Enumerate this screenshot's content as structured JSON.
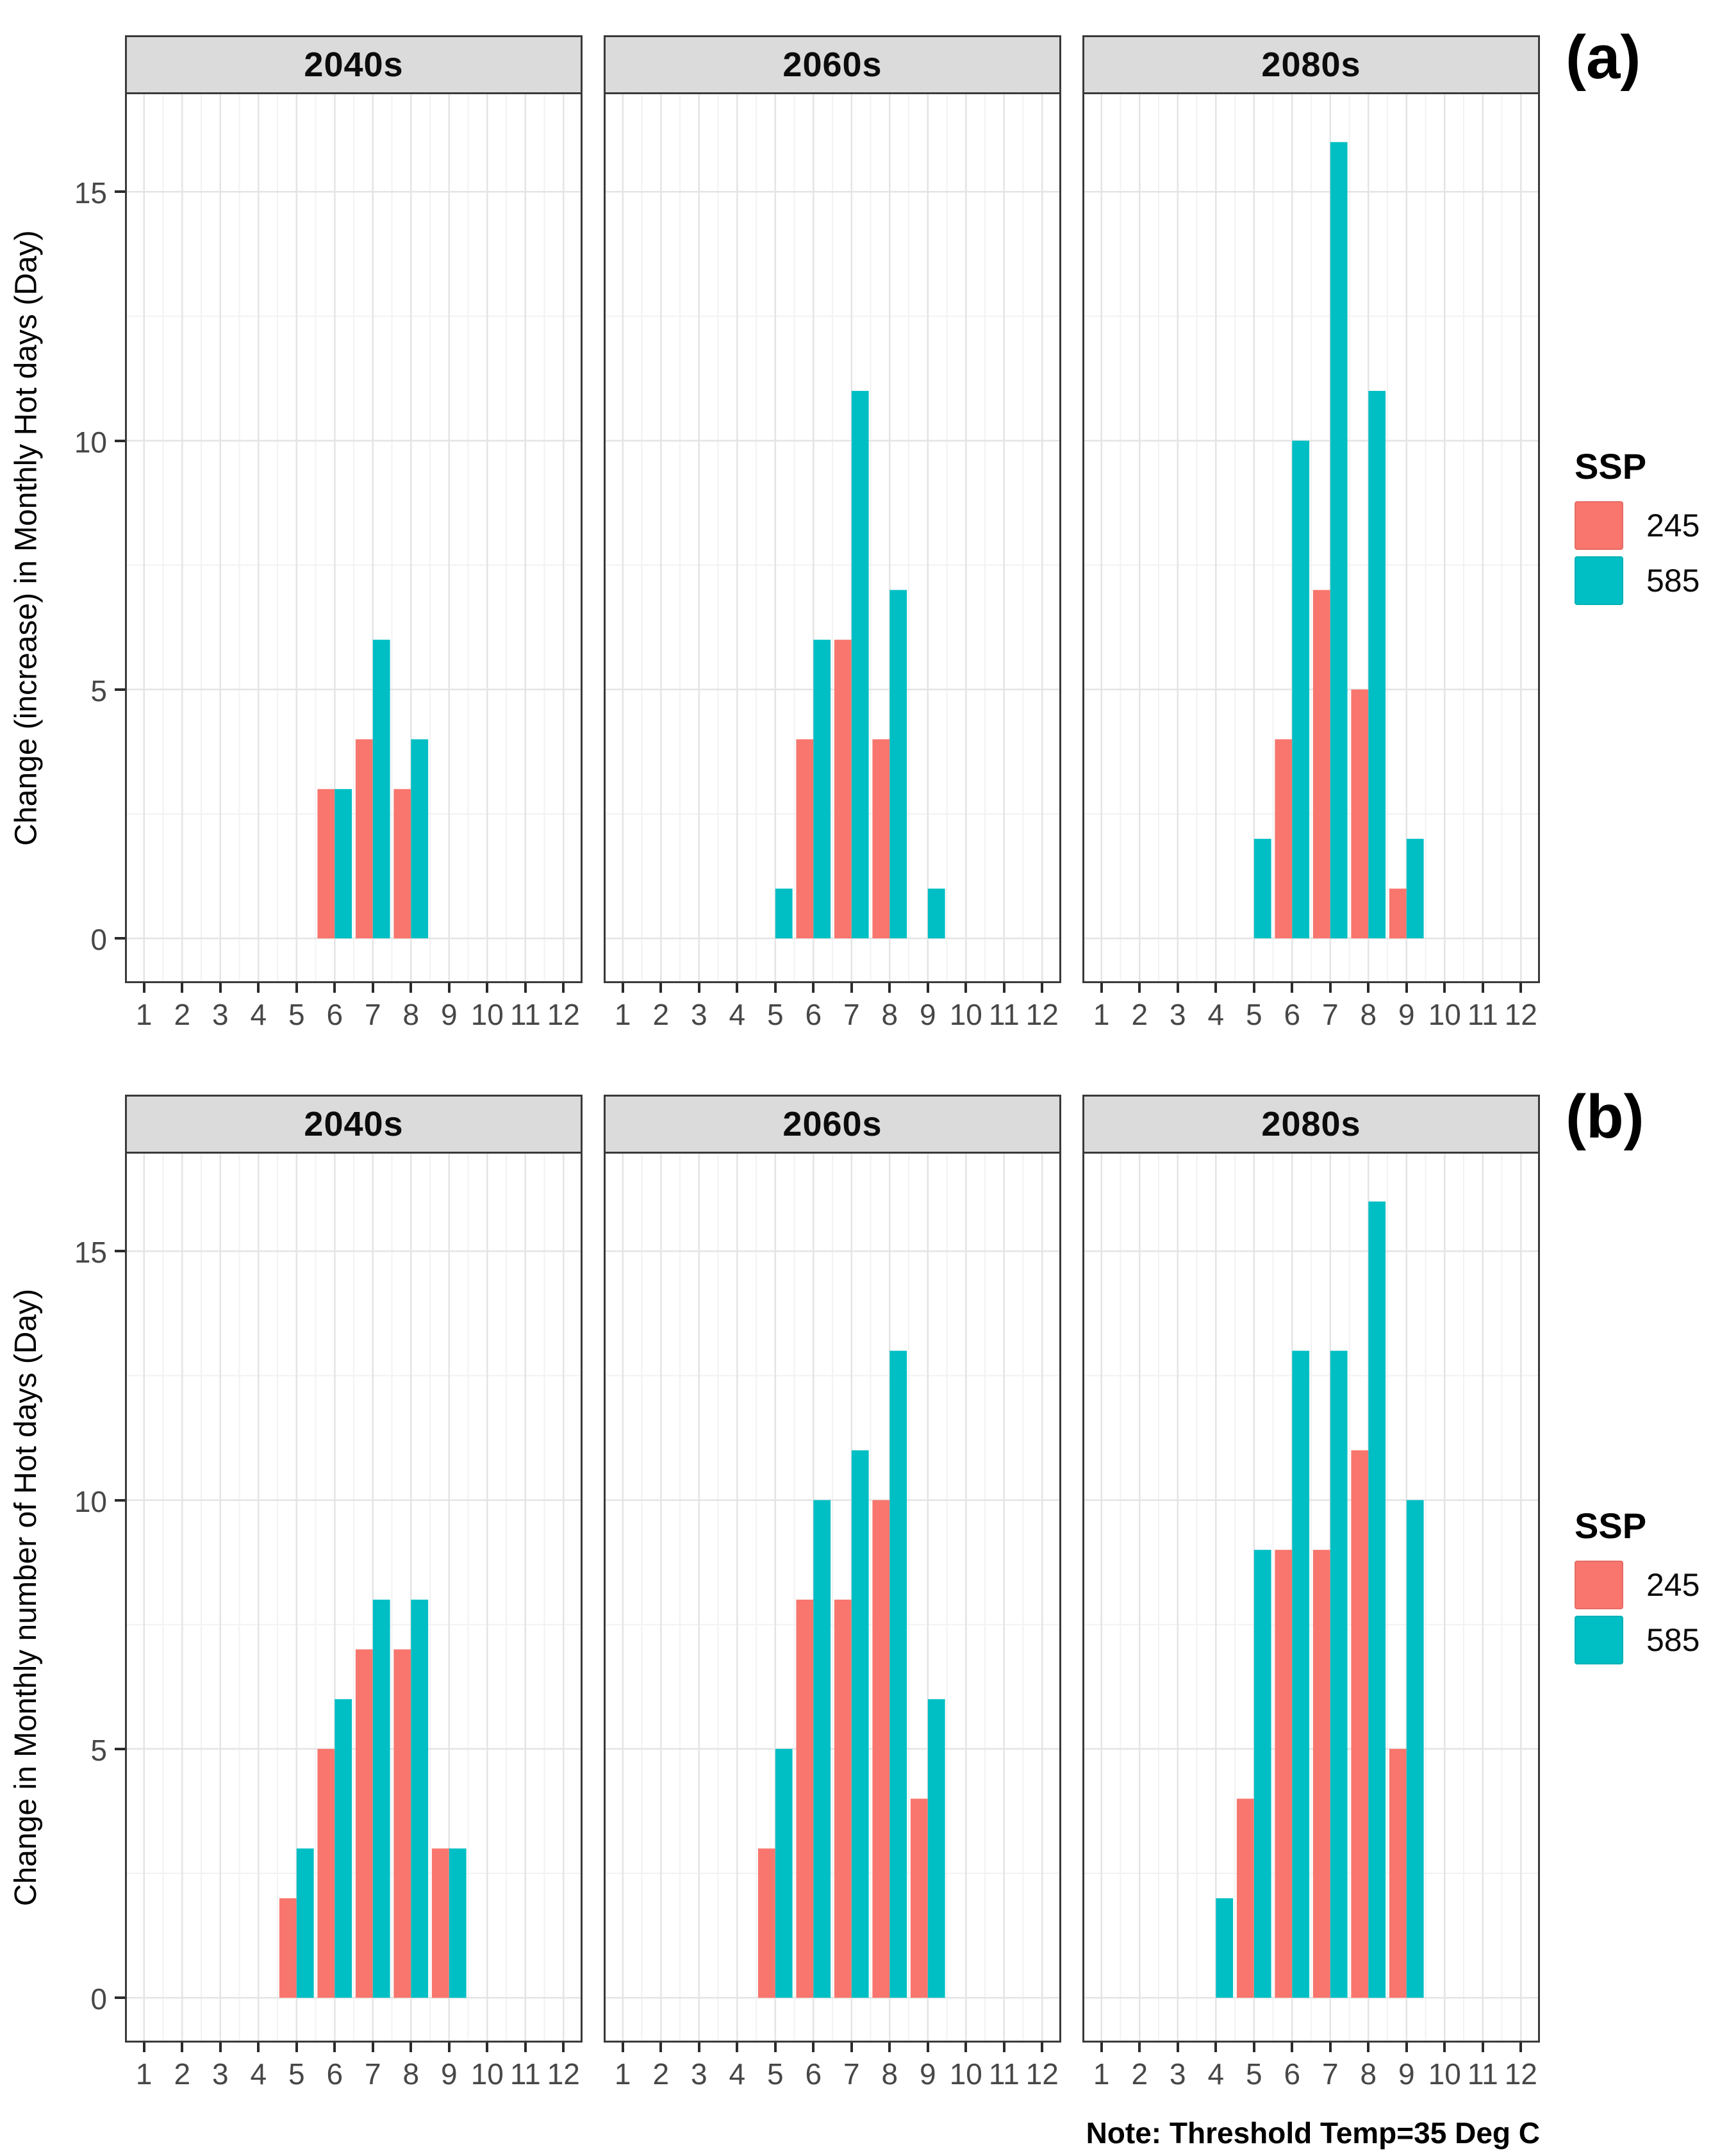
{
  "note": "Note: Threshold Temp=35 Deg C",
  "style": {
    "ssp245": "#F8766D",
    "ssp585": "#00BFC4",
    "strip_bg": "#DBDBDB",
    "grid_major": "#E4E4E4",
    "grid_minor": "#F2F2F2",
    "border": "#3A3A3A",
    "tick_label": "#474747"
  },
  "chart_data": [
    {
      "id": "a",
      "type": "bar",
      "corner_label": "(a)",
      "title": "",
      "xlabel": "",
      "ylabel": "Change (increase) in Monthly Hot days (Day)",
      "x_categories": [
        1,
        2,
        3,
        4,
        5,
        6,
        7,
        8,
        9,
        10,
        11,
        12
      ],
      "yticks": [
        0,
        5,
        10,
        15
      ],
      "ylim": [
        -0.9,
        17.0
      ],
      "grid": true,
      "legend": {
        "title": "SSP",
        "position": "right",
        "entries": [
          {
            "label": "245",
            "color": "#F8766D"
          },
          {
            "label": "585",
            "color": "#00BFC4"
          }
        ]
      },
      "facets": [
        {
          "title": "2040s",
          "series": [
            {
              "name": "245",
              "values": {
                "6": 3,
                "7": 4,
                "8": 3
              }
            },
            {
              "name": "585",
              "values": {
                "6": 3,
                "7": 6,
                "8": 4
              }
            }
          ]
        },
        {
          "title": "2060s",
          "series": [
            {
              "name": "245",
              "values": {
                "6": 4,
                "7": 6,
                "8": 4
              }
            },
            {
              "name": "585",
              "values": {
                "5": 1,
                "6": 6,
                "7": 11,
                "8": 7,
                "9": 1
              }
            }
          ]
        },
        {
          "title": "2080s",
          "series": [
            {
              "name": "245",
              "values": {
                "6": 4,
                "7": 7,
                "8": 5,
                "9": 1
              }
            },
            {
              "name": "585",
              "values": {
                "5": 2,
                "6": 10,
                "7": 16,
                "8": 11,
                "9": 2
              }
            }
          ]
        }
      ]
    },
    {
      "id": "b",
      "type": "bar",
      "corner_label": "(b)",
      "title": "",
      "xlabel": "",
      "ylabel": "Change in Monthly number of Hot days (Day)",
      "x_categories": [
        1,
        2,
        3,
        4,
        5,
        6,
        7,
        8,
        9,
        10,
        11,
        12
      ],
      "yticks": [
        0,
        5,
        10,
        15
      ],
      "ylim": [
        -0.9,
        17.0
      ],
      "grid": true,
      "legend": {
        "title": "SSP",
        "position": "right",
        "entries": [
          {
            "label": "245",
            "color": "#F8766D"
          },
          {
            "label": "585",
            "color": "#00BFC4"
          }
        ]
      },
      "facets": [
        {
          "title": "2040s",
          "series": [
            {
              "name": "245",
              "values": {
                "5": 2,
                "6": 5,
                "7": 7,
                "8": 7,
                "9": 3
              }
            },
            {
              "name": "585",
              "values": {
                "5": 3,
                "6": 6,
                "7": 8,
                "8": 8,
                "9": 3
              }
            }
          ]
        },
        {
          "title": "2060s",
          "series": [
            {
              "name": "245",
              "values": {
                "5": 3,
                "6": 8,
                "7": 8,
                "8": 10,
                "9": 4
              }
            },
            {
              "name": "585",
              "values": {
                "5": 5,
                "6": 10,
                "7": 11,
                "8": 13,
                "9": 6
              }
            }
          ]
        },
        {
          "title": "2080s",
          "series": [
            {
              "name": "245",
              "values": {
                "5": 4,
                "6": 9,
                "7": 9,
                "8": 11,
                "9": 5
              }
            },
            {
              "name": "585",
              "values": {
                "4": 2,
                "5": 9,
                "6": 13,
                "7": 13,
                "8": 16,
                "9": 10
              }
            }
          ]
        }
      ]
    }
  ]
}
